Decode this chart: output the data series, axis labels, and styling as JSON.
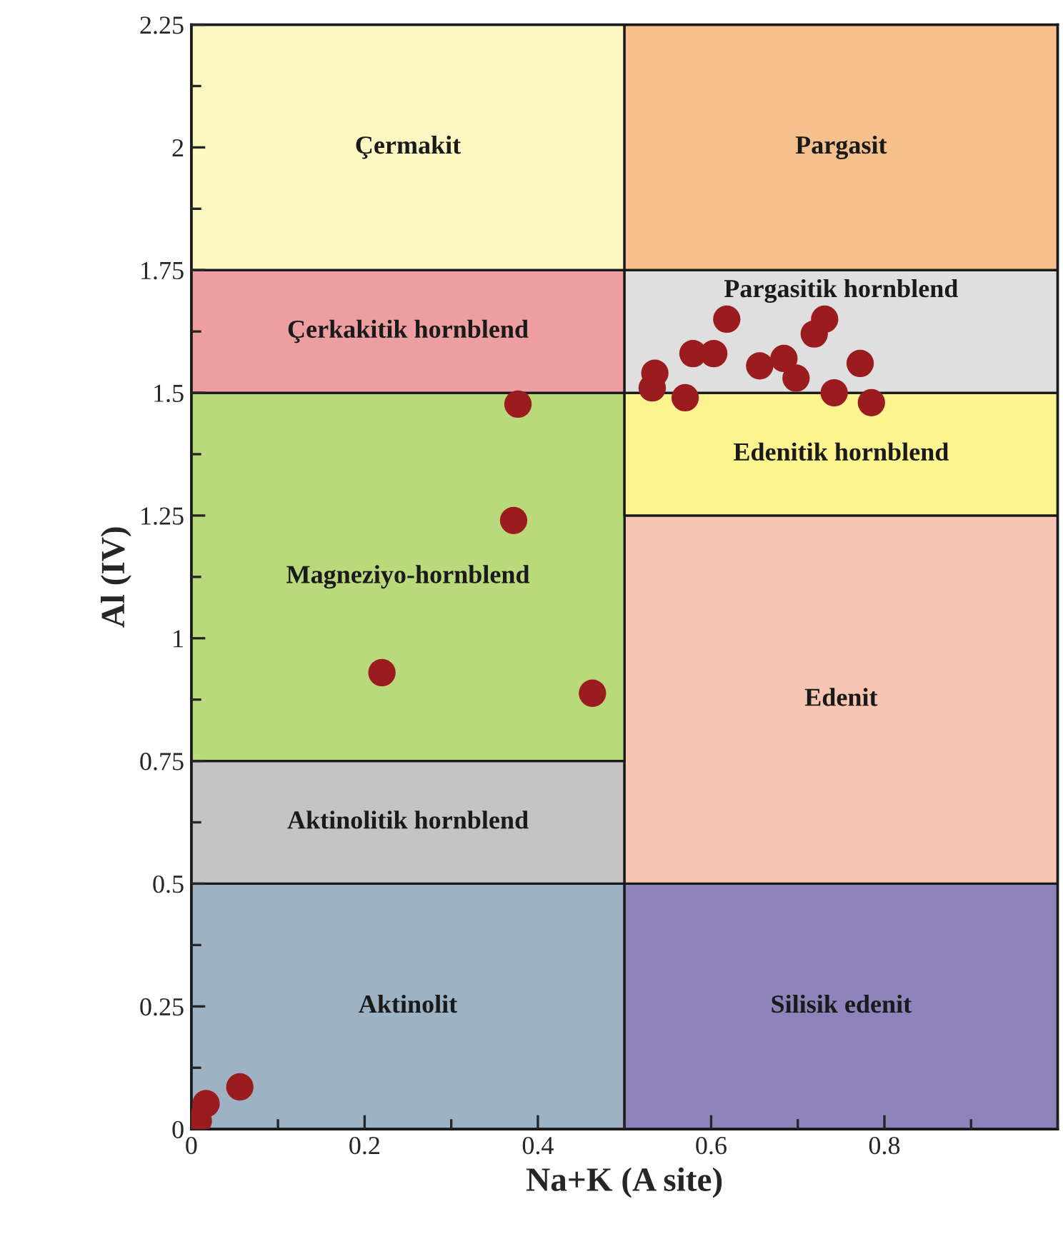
{
  "chart_data": {
    "type": "bar",
    "stacked": true,
    "xlabel": "Na+K (A site)",
    "ylabel": "Al (IV)",
    "xlim": [
      0,
      1
    ],
    "ylim": [
      0,
      2.25
    ],
    "xticks": [
      0,
      0.2,
      0.4,
      0.6,
      0.8
    ],
    "yticks": [
      0,
      0.25,
      0.5,
      0.75,
      1,
      1.25,
      1.5,
      1.75,
      2,
      2.25
    ],
    "grid": false,
    "legend": false,
    "series": [
      {
        "x": [
          0.25,
          0.75
        ],
        "values": [
          0.5,
          0.5
        ],
        "colors": [
          "#9db3c3",
          "#8f83bc"
        ]
      },
      {
        "x": [
          0.25,
          0.75
        ],
        "values": [
          0.25,
          0.75
        ],
        "colors": [
          "#c4c4c4",
          "#f7c5b2"
        ]
      },
      {
        "x": [
          0.25,
          0.75
        ],
        "values": [
          0.75,
          0.25
        ],
        "colors": [
          "#b9d97b",
          "#fdf48f"
        ]
      },
      {
        "x": [
          0.25,
          0.75
        ],
        "values": [
          0.25,
          0.25
        ],
        "colors": [
          "#ec9ea0",
          "#dfdfdf"
        ]
      },
      {
        "x": [
          0.25,
          0.75
        ],
        "values": [
          0.5,
          0.5
        ],
        "colors": [
          "#fdf8c2",
          "#f5c08c"
        ]
      },
      {
        "type": "scatter",
        "marker": "circle",
        "color": "#9b1c1f",
        "x": [
          0.377,
          0.372,
          0.22,
          0.463,
          0.056,
          0.017,
          0.008,
          0.535,
          0.532,
          0.57,
          0.618,
          0.579,
          0.603,
          0.656,
          0.684,
          0.698,
          0.719,
          0.731,
          0.742,
          0.772,
          0.785
        ],
        "values": [
          1.477,
          1.24,
          0.93,
          0.888,
          0.086,
          0.052,
          0.017,
          1.54,
          1.51,
          1.49,
          1.65,
          1.58,
          1.58,
          1.555,
          1.57,
          1.53,
          1.62,
          1.65,
          1.5,
          1.56,
          1.48
        ]
      }
    ],
    "annotations": [
      "Aktinolit",
      "Silisik edenit",
      "Aktinolitik hornblend",
      "Edenit",
      "Magneziyo-hornblend",
      "Edenitik hornblend",
      "Çerkakitik hornblend",
      "Pargasitik hornblend",
      "Çermakit",
      "Pargasit"
    ]
  }
}
